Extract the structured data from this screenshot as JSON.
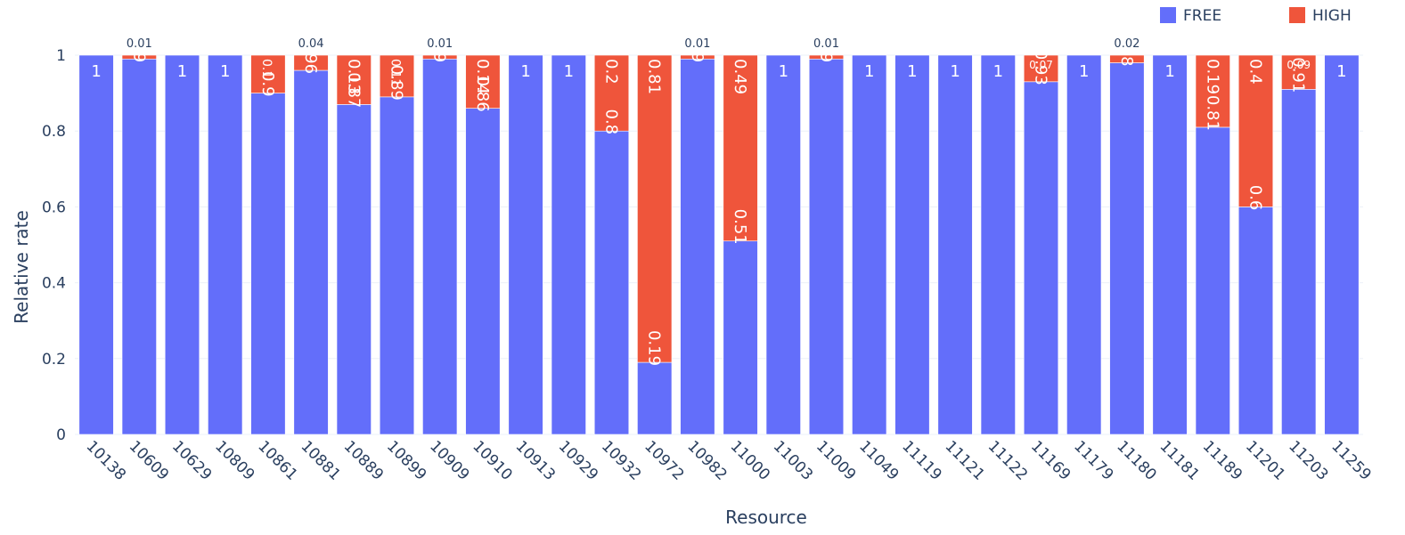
{
  "chart_data": {
    "type": "bar",
    "stacked": true,
    "categories": [
      "10138",
      "10609",
      "10629",
      "10809",
      "10861",
      "10881",
      "10889",
      "10899",
      "10909",
      "10910",
      "10913",
      "10929",
      "10932",
      "10972",
      "10982",
      "11000",
      "11003",
      "11009",
      "11049",
      "11119",
      "11121",
      "11122",
      "11169",
      "11179",
      "11180",
      "11181",
      "11189",
      "11201",
      "11203",
      "11259"
    ],
    "series": [
      {
        "name": "FREE",
        "color": "#636efa",
        "values": [
          1,
          0.99,
          1,
          1,
          0.9,
          0.96,
          0.87,
          0.89,
          0.99,
          0.86,
          1,
          1,
          0.8,
          0.19,
          0.99,
          0.51,
          1,
          0.99,
          1,
          1,
          1,
          1,
          0.93,
          1,
          0.98,
          1,
          0.81,
          0.6,
          0.91,
          1
        ],
        "labels": [
          "1",
          "0.99",
          "1",
          "1",
          "0.9",
          "0.96",
          "0.87",
          "0.89",
          "0.99",
          "0.86",
          "1",
          "1",
          "0.8",
          "0.19",
          "0.99",
          "0.51",
          "1",
          "0.99",
          "1",
          "1",
          "1",
          "1",
          "0.93",
          "1",
          "0.98",
          "1",
          "0.81",
          "0.6",
          "0.91",
          "1"
        ]
      },
      {
        "name": "HIGH",
        "color": "#ef553b",
        "values": [
          0,
          0.01,
          0,
          0,
          0.1,
          0.04,
          0.13,
          0.11,
          0.01,
          0.14,
          0,
          0,
          0.2,
          0.81,
          0.01,
          0.49,
          0,
          0.01,
          0,
          0,
          0,
          0,
          0.07,
          0,
          0.02,
          0,
          0.19,
          0.4,
          0.09,
          0
        ],
        "labels": [
          "",
          "0.01",
          "",
          "",
          "0.1",
          "0.04",
          "0.13",
          "0.11",
          "0.01",
          "0.14",
          "",
          "",
          "0.2",
          "0.81",
          "0.01",
          "0.49",
          "",
          "0.01",
          "",
          "",
          "",
          "",
          "0.07",
          "",
          "0.02",
          "",
          "0.19",
          "0.4",
          "0.09",
          ""
        ]
      }
    ],
    "xlabel": "Resource",
    "ylabel": "Relative rate",
    "ylim": [
      0,
      1
    ],
    "yticks": [
      "0",
      "0.2",
      "0.4",
      "0.6",
      "0.8",
      "1"
    ],
    "grid": true,
    "legend": "top-right"
  }
}
